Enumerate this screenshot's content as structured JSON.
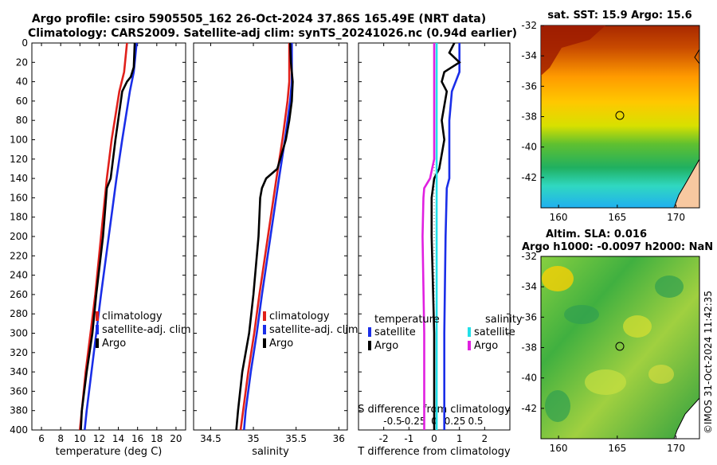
{
  "title_line1": "Argo profile: csiro 5905505_162 26-Oct-2024 37.86S 165.49E (NRT data)",
  "title_line2": "Climatology: CARS2009. Satellite-adj clim: synTS_20241026.nc (0.94d earlier)",
  "depth_ticks": [
    "0",
    "20",
    "40",
    "60",
    "80",
    "100",
    "120",
    "140",
    "160",
    "180",
    "200",
    "220",
    "240",
    "260",
    "280",
    "300",
    "320",
    "340",
    "360",
    "380",
    "400"
  ],
  "colors": {
    "climatology": "#e0201b",
    "satellite": "#1a2ee8",
    "argo": "#000000",
    "sal_satellite": "#22e0e8",
    "sal_argo": "#e020e0"
  },
  "chart_data": [
    {
      "type": "line",
      "name": "temperature",
      "xlabel": "temperature (deg C)",
      "xlim": [
        5,
        21
      ],
      "ylim": [
        0,
        400
      ],
      "x_ticks": [
        "6",
        "8",
        "10",
        "12",
        "14",
        "16",
        "18",
        "20"
      ],
      "legend": [
        "climatology",
        "satellite-adj. clim",
        "Argo"
      ],
      "series": [
        {
          "name": "climatology",
          "color": "#e0201b",
          "depth": [
            0,
            30,
            50,
            100,
            140,
            200,
            260,
            300,
            340,
            380,
            400
          ],
          "values": [
            14.9,
            14.6,
            14.1,
            13.3,
            12.8,
            12.2,
            11.6,
            11.1,
            10.6,
            10.2,
            10.0
          ]
        },
        {
          "name": "satellite-adj. clim",
          "color": "#1a2ee8",
          "depth": [
            0,
            30,
            50,
            100,
            140,
            200,
            260,
            300,
            340,
            380,
            400
          ],
          "values": [
            15.9,
            15.6,
            15.2,
            14.4,
            13.8,
            13.0,
            12.2,
            11.7,
            11.2,
            10.7,
            10.5
          ]
        },
        {
          "name": "Argo",
          "color": "#000000",
          "depth": [
            0,
            25,
            35,
            40,
            50,
            100,
            140,
            150,
            200,
            260,
            300,
            340,
            380,
            400
          ],
          "values": [
            15.7,
            15.6,
            15.3,
            14.9,
            14.4,
            13.7,
            13.2,
            12.8,
            12.4,
            11.7,
            11.3,
            10.7,
            10.2,
            10.1
          ]
        }
      ]
    },
    {
      "type": "line",
      "name": "salinity",
      "xlabel": "salinity",
      "xlim": [
        34.3,
        36.1
      ],
      "ylim": [
        0,
        400
      ],
      "x_ticks": [
        "34.5",
        "35",
        "35.5",
        "36"
      ],
      "legend": [
        "climatology",
        "satellite-adj. clim",
        "Argo"
      ],
      "series": [
        {
          "name": "climatology",
          "color": "#e0201b",
          "depth": [
            0,
            40,
            60,
            100,
            140,
            200,
            260,
            300,
            340,
            380,
            400
          ],
          "values": [
            35.42,
            35.42,
            35.4,
            35.34,
            35.27,
            35.17,
            35.07,
            35.01,
            34.94,
            34.88,
            34.85
          ]
        },
        {
          "name": "satellite-adj. clim",
          "color": "#1a2ee8",
          "depth": [
            0,
            40,
            60,
            100,
            140,
            200,
            260,
            300,
            340,
            380,
            400
          ],
          "values": [
            35.45,
            35.45,
            35.43,
            35.37,
            35.3,
            35.2,
            35.1,
            35.04,
            34.97,
            34.91,
            34.89
          ]
        },
        {
          "name": "Argo",
          "color": "#000000",
          "depth": [
            0,
            20,
            40,
            60,
            80,
            100,
            130,
            140,
            150,
            160,
            200,
            260,
            300,
            340,
            380,
            400
          ],
          "values": [
            35.43,
            35.44,
            35.46,
            35.45,
            35.42,
            35.38,
            35.28,
            35.15,
            35.1,
            35.08,
            35.06,
            35.0,
            34.95,
            34.87,
            34.82,
            34.8
          ]
        }
      ]
    },
    {
      "type": "line",
      "name": "difference",
      "xlabel": "T difference from climatology",
      "xlim": [
        -3,
        3
      ],
      "ylim": [
        0,
        400
      ],
      "x_ticks": [
        "-2",
        "-1",
        "0",
        "1",
        "2"
      ],
      "x2label": "S difference from climatology",
      "x2_ticks": [
        "-0.5",
        "-0.25",
        "0",
        "0.25",
        "0.5"
      ],
      "legend": {
        "temperature": [
          "satellite",
          "Argo"
        ],
        "salinity": [
          "satellite",
          "Argo"
        ]
      },
      "series": [
        {
          "name": "T satellite",
          "color": "#1a2ee8",
          "depth": [
            0,
            30,
            50,
            80,
            140,
            150,
            200,
            300,
            400
          ],
          "values": [
            1.0,
            1.0,
            0.7,
            0.6,
            0.6,
            0.5,
            0.45,
            0.4,
            0.4
          ]
        },
        {
          "name": "T Argo",
          "color": "#000000",
          "depth": [
            0,
            10,
            20,
            30,
            40,
            50,
            80,
            100,
            130,
            140,
            160,
            200,
            300,
            400
          ],
          "values": [
            0.8,
            0.6,
            1.0,
            0.4,
            0.3,
            0.5,
            0.3,
            0.4,
            0.2,
            0.0,
            -0.1,
            -0.1,
            0.0,
            0.0
          ]
        },
        {
          "name": "S satellite",
          "color": "#22e0e8",
          "depth": [
            0,
            100,
            200,
            300,
            400
          ],
          "values": [
            0.03,
            0.03,
            0.03,
            0.03,
            0.03
          ]
        },
        {
          "name": "S Argo",
          "color": "#e020e0",
          "depth": [
            0,
            40,
            120,
            140,
            150,
            160,
            200,
            300,
            400
          ],
          "values": [
            0.0,
            0.0,
            0.0,
            -0.05,
            -0.12,
            -0.13,
            -0.14,
            -0.12,
            -0.12
          ]
        }
      ]
    }
  ],
  "map_sst": {
    "title": "sat. SST: 15.9 Argo: 15.6",
    "x_ticks": [
      "160",
      "165",
      "170"
    ],
    "y_ticks": [
      "-32",
      "-34",
      "-36",
      "-38",
      "-40",
      "-42"
    ]
  },
  "map_sla": {
    "title1": "Altim. SLA: 0.016",
    "title2": "Argo h1000: -0.0097 h2000: NaN",
    "x_ticks": [
      "160",
      "165",
      "170"
    ],
    "y_ticks": [
      "-32",
      "-34",
      "-36",
      "-38",
      "-40",
      "-42"
    ]
  },
  "credit": "©IMOS 31-Oct-2024 11:42:35"
}
